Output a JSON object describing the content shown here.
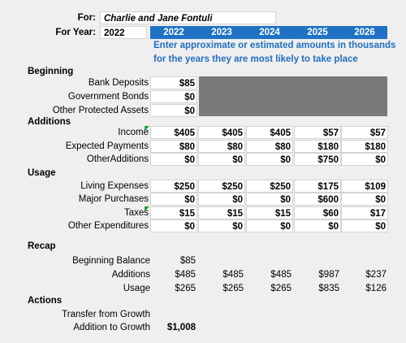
{
  "header": {
    "for_label": "For:",
    "name": "Charlie and Jane Fontuli",
    "year_label": "For Year:",
    "year": "2022",
    "years": [
      "2022",
      "2023",
      "2024",
      "2025",
      "2026"
    ],
    "note_lines": [
      "Enter approximate or estimated amounts in thousands",
      "for the years they are most likely to take place"
    ]
  },
  "sections": [
    {
      "title": "Beginning",
      "rows": [
        {
          "label": "Bank Deposits",
          "values": [
            "$85"
          ]
        },
        {
          "label": "Government Bonds",
          "values": [
            "$0"
          ]
        },
        {
          "label": "Other Protected Assets",
          "values": [
            "$0"
          ]
        }
      ]
    },
    {
      "title": "Additions",
      "rows": [
        {
          "label": "Income",
          "values": [
            "$405",
            "$405",
            "$405",
            "$57",
            "$57"
          ]
        },
        {
          "label": "Expected Payments",
          "values": [
            "$80",
            "$80",
            "$80",
            "$180",
            "$180"
          ]
        },
        {
          "label": "OtherAdditions",
          "values": [
            "$0",
            "$0",
            "$0",
            "$750",
            "$0"
          ]
        }
      ]
    },
    {
      "title": "Usage",
      "rows": [
        {
          "label": "Living Expenses",
          "values": [
            "$250",
            "$250",
            "$250",
            "$175",
            "$109"
          ]
        },
        {
          "label": "Major Purchases",
          "values": [
            "$0",
            "$0",
            "$0",
            "$600",
            "$0"
          ]
        },
        {
          "label": "Taxes",
          "values": [
            "$15",
            "$15",
            "$15",
            "$60",
            "$17"
          ]
        },
        {
          "label": "Other Expenditures",
          "values": [
            "$0",
            "$0",
            "$0",
            "$0",
            "$0"
          ]
        }
      ]
    },
    {
      "title": "Recap",
      "rows": [
        {
          "label": "Beginning Balance",
          "values": [
            "$85"
          ]
        },
        {
          "label": "Additions",
          "values": [
            "$485",
            "$485",
            "$485",
            "$987",
            "$237"
          ]
        },
        {
          "label": "Usage",
          "values": [
            "$265",
            "$265",
            "$265",
            "$835",
            "$126"
          ]
        }
      ]
    },
    {
      "title": "Actions",
      "rows": [
        {
          "label": "Transfer from Growth",
          "values": []
        },
        {
          "label": "Addition to Growth",
          "values": [
            "$1,008"
          ]
        }
      ]
    }
  ]
}
